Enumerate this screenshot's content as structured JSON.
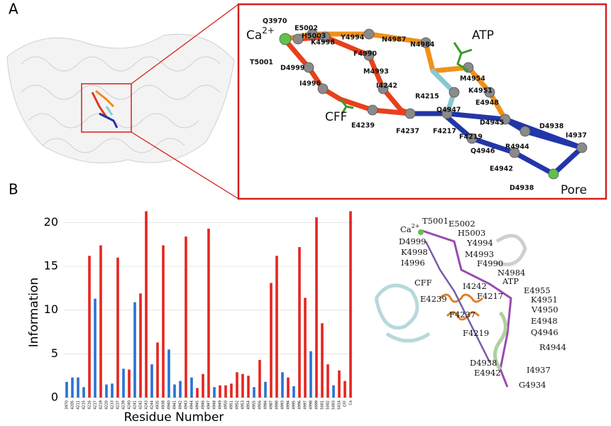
{
  "panel_a": {
    "label": "A",
    "ca": "Ca",
    "ca_sup": "2+",
    "zoom_labels": [
      "Q3970",
      "E5002",
      "H5003",
      "Y4994",
      "N4987",
      "N4984",
      "K4998",
      "F4990",
      "T5001",
      "D4999",
      "M4993",
      "M4954",
      "I4996",
      "I4242",
      "R4215",
      "K4951",
      "E4948",
      "Q4947",
      "D4945",
      "E4239",
      "F4237",
      "F4217",
      "F4219",
      "D4938",
      "I4937",
      "R4944",
      "Q4946",
      "E4942",
      "D4938"
    ],
    "big_labels": [
      "ATP",
      "CFF",
      "Pore"
    ]
  },
  "panel_b": {
    "label": "B",
    "ca": "Ca",
    "ca_sup": "2+",
    "structure_labels": [
      "T5001",
      "E5002",
      "H5003",
      "D4999",
      "Y4994",
      "K4998",
      "M4993",
      "I4996",
      "F4990",
      "N4984",
      "CFF",
      "ATP",
      "I4242",
      "E4955",
      "F4217",
      "E4239",
      "K4951",
      "V4950",
      "F4237",
      "E4948",
      "F4219",
      "Q4946",
      "R4944",
      "D4938",
      "I4937",
      "E4942",
      "G4934"
    ]
  },
  "chart_data": {
    "type": "bar",
    "x_label": "Residue Number",
    "y_label": "Information",
    "categories": [
      "3970",
      "4205",
      "4211",
      "4215",
      "4216",
      "4217",
      "4219",
      "4220",
      "4233",
      "4237",
      "4239",
      "4240",
      "4241",
      "4242",
      "4243",
      "4244",
      "4935",
      "4938",
      "4940",
      "4941",
      "4942",
      "4943",
      "4944",
      "4945",
      "4946",
      "4947",
      "4948",
      "4949",
      "4950",
      "4951",
      "4952",
      "4953",
      "4954",
      "4955",
      "4956",
      "4984",
      "4987",
      "4990",
      "4993",
      "4994",
      "4995",
      "4996",
      "4997",
      "4998",
      "4999",
      "5001",
      "5002",
      "5003",
      "5014",
      "CFF",
      "Ca"
    ],
    "values": [
      1.8,
      2.3,
      2.3,
      1.2,
      16.2,
      11.3,
      17.4,
      1.5,
      1.6,
      16.0,
      3.3,
      3.2,
      10.9,
      11.9,
      21.3,
      3.8,
      6.3,
      17.4,
      5.5,
      1.5,
      1.9,
      18.4,
      2.3,
      1.1,
      2.7,
      19.3,
      1.2,
      1.4,
      1.4,
      1.6,
      2.9,
      2.7,
      2.5,
      1.2,
      4.3,
      1.8,
      13.1,
      16.2,
      2.9,
      2.3,
      1.3,
      17.2,
      11.4,
      5.3,
      20.6,
      8.5,
      3.8,
      1.4,
      3.1,
      1.9,
      21.3
    ],
    "colors": [
      "#2a72d4",
      "#2a72d4",
      "#2a72d4",
      "#2a72d4",
      "#e52620",
      "#2a72d4",
      "#e52620",
      "#2a72d4",
      "#2a72d4",
      "#e52620",
      "#2a72d4",
      "#e52620",
      "#2a72d4",
      "#e52620",
      "#e52620",
      "#2a72d4",
      "#e52620",
      "#e52620",
      "#2a72d4",
      "#2a72d4",
      "#2a72d4",
      "#e52620",
      "#2a72d4",
      "#e52620",
      "#e52620",
      "#e52620",
      "#2a72d4",
      "#e52620",
      "#e52620",
      "#e52620",
      "#e52620",
      "#e52620",
      "#e52620",
      "#2a72d4",
      "#e52620",
      "#2a72d4",
      "#e52620",
      "#e52620",
      "#2a72d4",
      "#e52620",
      "#2a72d4",
      "#e52620",
      "#e52620",
      "#2a72d4",
      "#e52620",
      "#e52620",
      "#e52620",
      "#2a72d4",
      "#e52620",
      "#e52620",
      "#e52620"
    ],
    "ylim": [
      0,
      21.5
    ],
    "yticks": [
      0,
      5,
      10,
      15,
      20
    ],
    "grid": true
  }
}
